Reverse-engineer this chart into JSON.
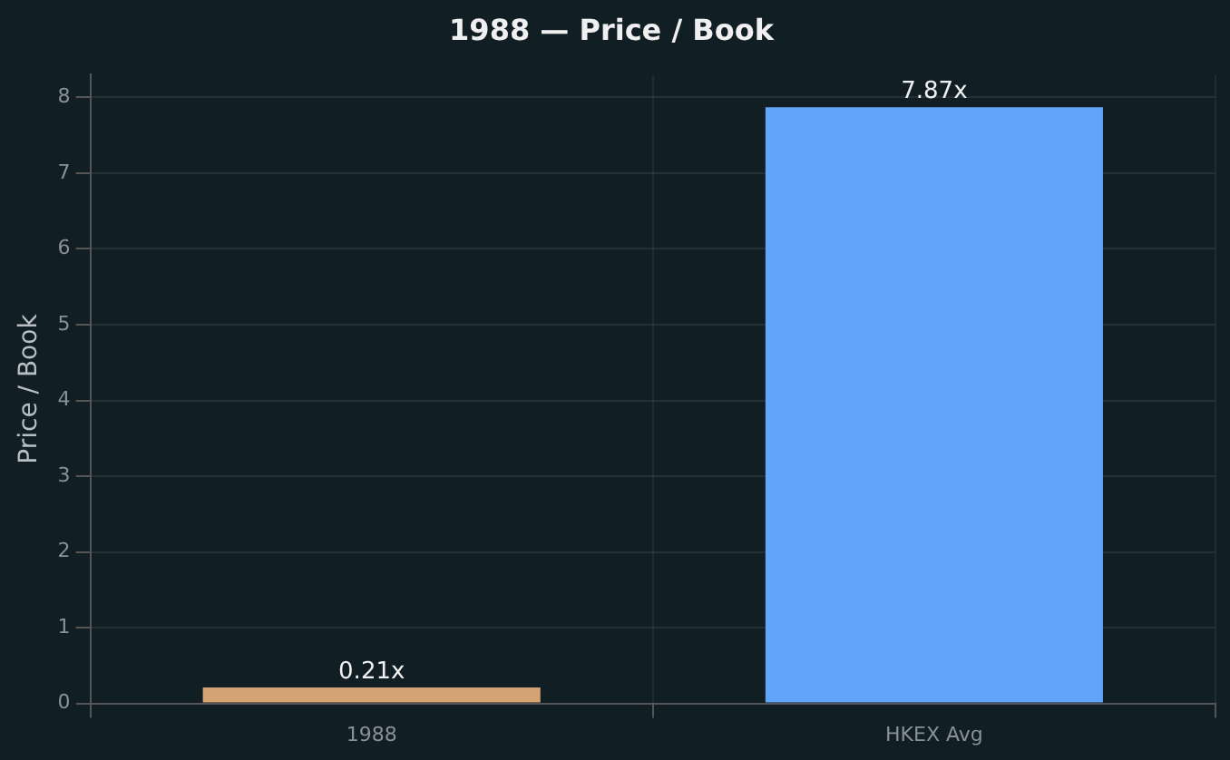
{
  "chart_data": {
    "type": "bar",
    "title": "1988 — Price / Book",
    "ylabel": "Price / Book",
    "categories": [
      "1988",
      "HKEX Avg"
    ],
    "values": [
      0.21,
      7.87
    ],
    "colors": [
      "#d4a373",
      "#60a5fa"
    ],
    "value_labels": [
      "0.21x",
      "7.87x"
    ],
    "ylim": [
      0,
      8.3
    ],
    "yticks": [
      0,
      1,
      2,
      3,
      4,
      5,
      6,
      7,
      8
    ],
    "grid": true,
    "legend": false
  }
}
